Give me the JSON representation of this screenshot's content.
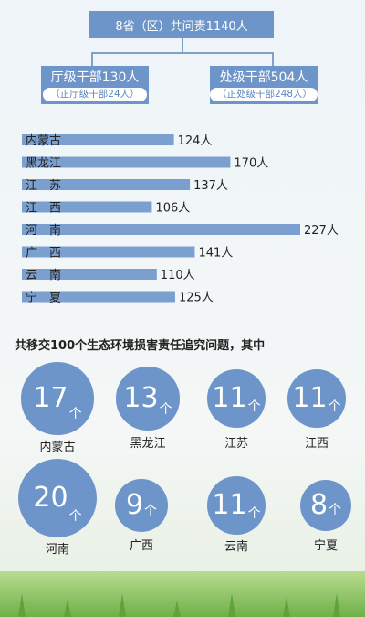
{
  "header": {
    "total": "8省（区）共问责1140人",
    "left_main": "厅级干部130人",
    "left_note": "（正厅级干部24人）",
    "right_main": "处级干部504人",
    "right_note": "（正处级干部248人）"
  },
  "caption": "共移交100个生态环境损害责任追究问题，其中",
  "colors": {
    "accent": "#6d95c9",
    "bar": "#7ba0d0",
    "grass": "#6fb04a"
  },
  "chart_data": [
    {
      "type": "bar",
      "orientation": "horizontal",
      "categories": [
        "内蒙古",
        "黑龙江",
        "江　苏",
        "江　西",
        "河　南",
        "广　西",
        "云　南",
        "宁　夏"
      ],
      "values": [
        124,
        170,
        137,
        106,
        227,
        141,
        110,
        125
      ],
      "value_labels": [
        "124人",
        "170人",
        "137人",
        "106人",
        "227人",
        "141人",
        "110人",
        "125人"
      ]
    },
    {
      "type": "bubble",
      "categories": [
        "内蒙古",
        "黑龙江",
        "江苏",
        "江西",
        "河南",
        "广西",
        "云南",
        "宁夏"
      ],
      "values": [
        17,
        13,
        11,
        11,
        20,
        9,
        11,
        8
      ],
      "unit": "个"
    }
  ]
}
